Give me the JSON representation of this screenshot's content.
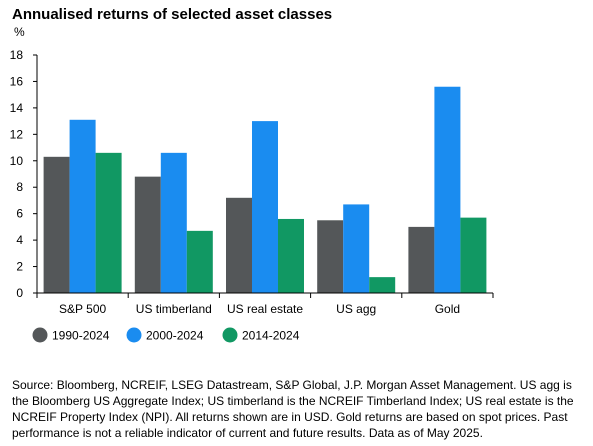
{
  "title": "Annualised returns of selected asset classes",
  "colors": {
    "series_1990": "#545759",
    "series_2000": "#1a8cf0",
    "series_2014": "#119863",
    "axis": "#000000",
    "grid": "#000000"
  },
  "chart_data": {
    "type": "bar",
    "title": "Annualised returns of selected asset classes",
    "ylabel": "%",
    "xlabel": "",
    "ylim": [
      0,
      18
    ],
    "yticks": [
      0,
      2,
      4,
      6,
      8,
      10,
      12,
      14,
      16,
      18
    ],
    "grid": false,
    "legend_position": "bottom-left",
    "categories": [
      "S&P 500",
      "US timberland",
      "US real estate",
      "US agg",
      "Gold"
    ],
    "series": [
      {
        "name": "1990-2024",
        "color": "#545759",
        "values": [
          10.3,
          8.8,
          7.2,
          5.5,
          5.0
        ]
      },
      {
        "name": "2000-2024",
        "color": "#1a8cf0",
        "values": [
          13.1,
          10.6,
          13.0,
          6.7,
          15.6
        ]
      },
      {
        "name": "2014-2024",
        "color": "#119863",
        "values": [
          10.6,
          4.7,
          5.6,
          1.2,
          5.7
        ]
      }
    ]
  },
  "footnote": "Source: Bloomberg, NCREIF, LSEG Datastream, S&P Global, J.P. Morgan Asset Management. US agg is the Bloomberg US Aggregate Index; US timberland is the NCREIF Timberland Index; US real estate is the NCREIF Property Index (NPI). All returns shown are in USD. Gold returns are based on spot prices. Past performance is not a reliable indicator of current and future results. Data as of May 2025."
}
